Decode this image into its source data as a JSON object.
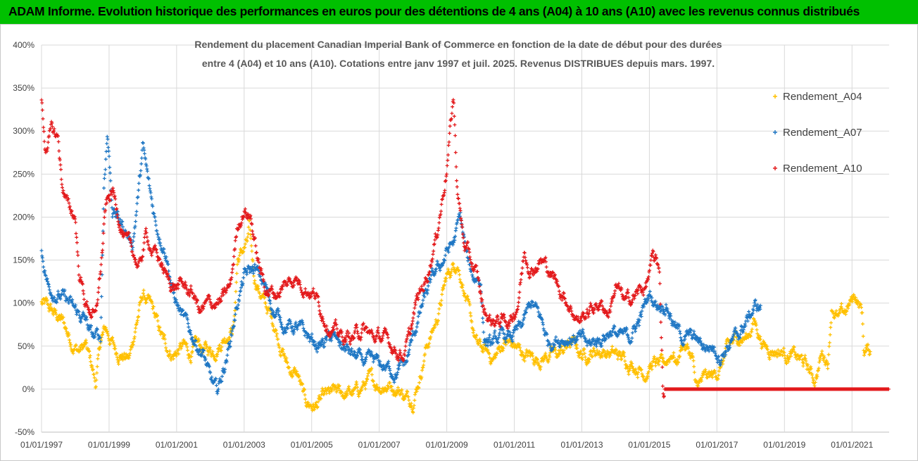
{
  "banner": {
    "title": "ADAM Informe. Evolution historique des performances en euros pour des détentions de 4 ans (A04) à 10 ans (A10) avec les revenus connus distribués",
    "color": "#00c000"
  },
  "chart_data": {
    "type": "scatter",
    "title_lines": [
      "Rendement du placement Canadian Imperial Bank of Commerce en fonction de la date de début pour des durées",
      "entre 4 (A04) et 10 ans (A10). Cotations entre janv 1997 et juil. 2025. Revenus DISTRIBUES depuis mars. 1997."
    ],
    "xlabel": "",
    "ylabel": "",
    "x_ticks": [
      "01/01/1997",
      "01/01/1999",
      "01/01/2001",
      "01/01/2003",
      "01/01/2005",
      "01/01/2007",
      "01/01/2009",
      "01/01/2011",
      "01/01/2013",
      "01/01/2015",
      "01/01/2017",
      "01/01/2019",
      "01/01/2021"
    ],
    "y_ticks": [
      "400%",
      "350%",
      "300%",
      "250%",
      "200%",
      "150%",
      "100%",
      "50%",
      "0%",
      "-50%"
    ],
    "x_range": [
      1997.0,
      2022.1
    ],
    "y_range": [
      -50,
      400
    ],
    "marker": "+",
    "grid": "horizontal",
    "legend_position": "right",
    "series": [
      {
        "name": "Rendement_A04",
        "color": "#ffc000",
        "x_start": 1997.0,
        "x_end": 2021.55,
        "points": [
          [
            1997.0,
            100
          ],
          [
            1997.3,
            90
          ],
          [
            1997.6,
            80
          ],
          [
            1997.9,
            55
          ],
          [
            1998.1,
            45
          ],
          [
            1998.3,
            50
          ],
          [
            1998.5,
            25
          ],
          [
            1998.6,
            5
          ],
          [
            1998.75,
            55
          ],
          [
            1998.9,
            70
          ],
          [
            1999.2,
            45
          ],
          [
            1999.6,
            35
          ],
          [
            1999.8,
            75
          ],
          [
            2000.0,
            110
          ],
          [
            2000.3,
            90
          ],
          [
            2000.6,
            55
          ],
          [
            2000.9,
            40
          ],
          [
            2001.2,
            50
          ],
          [
            2001.4,
            40
          ],
          [
            2001.6,
            50
          ],
          [
            2001.9,
            45
          ],
          [
            2002.1,
            45
          ],
          [
            2002.4,
            60
          ],
          [
            2002.7,
            75
          ],
          [
            2002.8,
            150
          ],
          [
            2003.1,
            170
          ],
          [
            2003.15,
            185
          ],
          [
            2003.3,
            130
          ],
          [
            2003.6,
            100
          ],
          [
            2003.9,
            75
          ],
          [
            2004.3,
            25
          ],
          [
            2004.6,
            15
          ],
          [
            2004.8,
            -15
          ],
          [
            2005.1,
            -20
          ],
          [
            2005.4,
            -10
          ],
          [
            2005.7,
            -5
          ],
          [
            2006.0,
            -5
          ],
          [
            2006.3,
            -5
          ],
          [
            2006.7,
            10
          ],
          [
            2007.0,
            5
          ],
          [
            2007.3,
            5
          ],
          [
            2007.6,
            0
          ],
          [
            2007.8,
            -10
          ],
          [
            2008.0,
            -10
          ],
          [
            2008.2,
            15
          ],
          [
            2008.4,
            50
          ],
          [
            2008.7,
            80
          ],
          [
            2009.0,
            130
          ],
          [
            2009.3,
            150
          ],
          [
            2009.5,
            120
          ],
          [
            2009.7,
            80
          ],
          [
            2009.9,
            50
          ],
          [
            2010.1,
            45
          ],
          [
            2010.4,
            35
          ],
          [
            2010.7,
            55
          ],
          [
            2011.0,
            50
          ],
          [
            2011.3,
            40
          ],
          [
            2011.7,
            35
          ],
          [
            2012.0,
            40
          ],
          [
            2012.3,
            40
          ],
          [
            2012.7,
            55
          ],
          [
            2013.0,
            40
          ],
          [
            2013.5,
            45
          ],
          [
            2014.0,
            40
          ],
          [
            2014.5,
            30
          ],
          [
            2014.9,
            20
          ],
          [
            2015.1,
            30
          ],
          [
            2015.4,
            25
          ],
          [
            2015.7,
            45
          ],
          [
            2015.8,
            30
          ],
          [
            2016.0,
            55
          ],
          [
            2016.3,
            35
          ],
          [
            2016.35,
            0
          ],
          [
            2016.6,
            10
          ],
          [
            2016.9,
            15
          ],
          [
            2017.1,
            25
          ],
          [
            2017.3,
            45
          ],
          [
            2017.6,
            60
          ],
          [
            2017.9,
            60
          ],
          [
            2018.1,
            80
          ],
          [
            2018.4,
            50
          ],
          [
            2018.8,
            45
          ],
          [
            2019.2,
            40
          ],
          [
            2019.6,
            30
          ],
          [
            2019.9,
            10
          ],
          [
            2020.1,
            40
          ],
          [
            2020.3,
            35
          ],
          [
            2020.4,
            100
          ],
          [
            2020.6,
            80
          ],
          [
            2020.9,
            95
          ],
          [
            2021.1,
            110
          ],
          [
            2021.3,
            90
          ],
          [
            2021.35,
            45
          ],
          [
            2021.55,
            45
          ]
        ]
      },
      {
        "name": "Rendement_A07",
        "color": "#1f77c4",
        "x_start": 1997.0,
        "x_end": 2018.3,
        "points": [
          [
            1997.0,
            160
          ],
          [
            1997.2,
            120
          ],
          [
            1997.5,
            110
          ],
          [
            1997.8,
            100
          ],
          [
            1998.0,
            90
          ],
          [
            1998.3,
            80
          ],
          [
            1998.5,
            60
          ],
          [
            1998.6,
            60
          ],
          [
            1998.75,
            60
          ],
          [
            1998.85,
            240
          ],
          [
            1998.95,
            300
          ],
          [
            1999.1,
            210
          ],
          [
            1999.4,
            190
          ],
          [
            1999.7,
            170
          ],
          [
            1999.9,
            240
          ],
          [
            2000.0,
            280
          ],
          [
            2000.2,
            230
          ],
          [
            2000.4,
            190
          ],
          [
            2000.7,
            160
          ],
          [
            2000.9,
            110
          ],
          [
            2001.2,
            80
          ],
          [
            2001.5,
            60
          ],
          [
            2001.8,
            40
          ],
          [
            2002.0,
            10
          ],
          [
            2002.2,
            -5
          ],
          [
            2002.5,
            40
          ],
          [
            2002.6,
            60
          ],
          [
            2002.8,
            100
          ],
          [
            2003.0,
            130
          ],
          [
            2003.3,
            140
          ],
          [
            2003.6,
            120
          ],
          [
            2003.9,
            90
          ],
          [
            2004.2,
            75
          ],
          [
            2004.6,
            70
          ],
          [
            2004.9,
            60
          ],
          [
            2005.2,
            50
          ],
          [
            2005.6,
            60
          ],
          [
            2005.9,
            50
          ],
          [
            2006.2,
            40
          ],
          [
            2006.6,
            30
          ],
          [
            2006.9,
            30
          ],
          [
            2007.2,
            25
          ],
          [
            2007.5,
            20
          ],
          [
            2007.8,
            30
          ],
          [
            2008.0,
            60
          ],
          [
            2008.3,
            100
          ],
          [
            2008.6,
            130
          ],
          [
            2008.9,
            150
          ],
          [
            2009.0,
            160
          ],
          [
            2009.2,
            170
          ],
          [
            2009.4,
            200
          ],
          [
            2009.6,
            150
          ],
          [
            2009.8,
            130
          ],
          [
            2010.0,
            130
          ],
          [
            2010.1,
            60
          ],
          [
            2010.3,
            50
          ],
          [
            2010.6,
            60
          ],
          [
            2010.9,
            60
          ],
          [
            2011.2,
            70
          ],
          [
            2011.5,
            100
          ],
          [
            2011.8,
            80
          ],
          [
            2012.0,
            55
          ],
          [
            2012.3,
            60
          ],
          [
            2012.6,
            60
          ],
          [
            2012.9,
            60
          ],
          [
            2013.2,
            50
          ],
          [
            2013.6,
            60
          ],
          [
            2013.9,
            70
          ],
          [
            2014.1,
            60
          ],
          [
            2014.4,
            60
          ],
          [
            2014.7,
            80
          ],
          [
            2015.0,
            110
          ],
          [
            2015.2,
            100
          ],
          [
            2015.5,
            100
          ],
          [
            2015.8,
            70
          ],
          [
            2016.0,
            60
          ],
          [
            2016.3,
            60
          ],
          [
            2016.6,
            50
          ],
          [
            2016.9,
            50
          ],
          [
            2017.1,
            40
          ],
          [
            2017.3,
            50
          ],
          [
            2017.6,
            60
          ],
          [
            2017.9,
            80
          ],
          [
            2018.1,
            95
          ],
          [
            2018.3,
            95
          ]
        ]
      },
      {
        "name": "Rendement_A10",
        "color": "#e31a1c",
        "x_start": 1997.0,
        "x_end": 2022.1,
        "points": [
          [
            1997.0,
            340
          ],
          [
            1997.1,
            280
          ],
          [
            1997.3,
            300
          ],
          [
            1997.5,
            290
          ],
          [
            1997.6,
            240
          ],
          [
            1997.8,
            210
          ],
          [
            1998.0,
            200
          ],
          [
            1998.1,
            140
          ],
          [
            1998.3,
            100
          ],
          [
            1998.5,
            90
          ],
          [
            1998.6,
            80
          ],
          [
            1998.7,
            120
          ],
          [
            1998.8,
            160
          ],
          [
            1998.9,
            210
          ],
          [
            1999.1,
            230
          ],
          [
            1999.3,
            200
          ],
          [
            1999.5,
            170
          ],
          [
            1999.7,
            160
          ],
          [
            1999.9,
            140
          ],
          [
            2000.1,
            180
          ],
          [
            2000.3,
            160
          ],
          [
            2000.5,
            150
          ],
          [
            2000.7,
            130
          ],
          [
            2000.9,
            120
          ],
          [
            2001.2,
            120
          ],
          [
            2001.5,
            110
          ],
          [
            2001.7,
            90
          ],
          [
            2002.0,
            100
          ],
          [
            2002.3,
            100
          ],
          [
            2002.6,
            120
          ],
          [
            2002.8,
            190
          ],
          [
            2003.0,
            210
          ],
          [
            2003.2,
            200
          ],
          [
            2003.4,
            150
          ],
          [
            2003.6,
            120
          ],
          [
            2003.9,
            110
          ],
          [
            2004.2,
            120
          ],
          [
            2004.5,
            130
          ],
          [
            2004.8,
            120
          ],
          [
            2005.1,
            110
          ],
          [
            2005.3,
            90
          ],
          [
            2005.6,
            70
          ],
          [
            2005.9,
            60
          ],
          [
            2006.2,
            60
          ],
          [
            2006.5,
            70
          ],
          [
            2006.8,
            60
          ],
          [
            2007.1,
            60
          ],
          [
            2007.4,
            50
          ],
          [
            2007.7,
            40
          ],
          [
            2007.9,
            60
          ],
          [
            2008.1,
            100
          ],
          [
            2008.4,
            130
          ],
          [
            2008.7,
            180
          ],
          [
            2008.9,
            230
          ],
          [
            2009.0,
            260
          ],
          [
            2009.1,
            300
          ],
          [
            2009.2,
            340
          ],
          [
            2009.3,
            240
          ],
          [
            2009.5,
            170
          ],
          [
            2009.7,
            150
          ],
          [
            2009.9,
            130
          ],
          [
            2010.1,
            90
          ],
          [
            2010.3,
            80
          ],
          [
            2010.6,
            80
          ],
          [
            2010.9,
            80
          ],
          [
            2011.1,
            100
          ],
          [
            2011.3,
            160
          ],
          [
            2011.5,
            140
          ],
          [
            2011.8,
            150
          ],
          [
            2012.0,
            140
          ],
          [
            2012.3,
            120
          ],
          [
            2012.6,
            100
          ],
          [
            2012.9,
            80
          ],
          [
            2013.2,
            90
          ],
          [
            2013.5,
            100
          ],
          [
            2013.8,
            90
          ],
          [
            2014.0,
            120
          ],
          [
            2014.3,
            100
          ],
          [
            2014.6,
            110
          ],
          [
            2014.9,
            120
          ],
          [
            2015.1,
            150
          ],
          [
            2015.3,
            140
          ],
          [
            2015.4,
            0
          ],
          [
            2016.0,
            0
          ],
          [
            2017.0,
            0
          ],
          [
            2018.0,
            0
          ],
          [
            2019.0,
            0
          ],
          [
            2020.0,
            0
          ],
          [
            2021.0,
            0
          ],
          [
            2022.1,
            0
          ]
        ]
      }
    ]
  }
}
